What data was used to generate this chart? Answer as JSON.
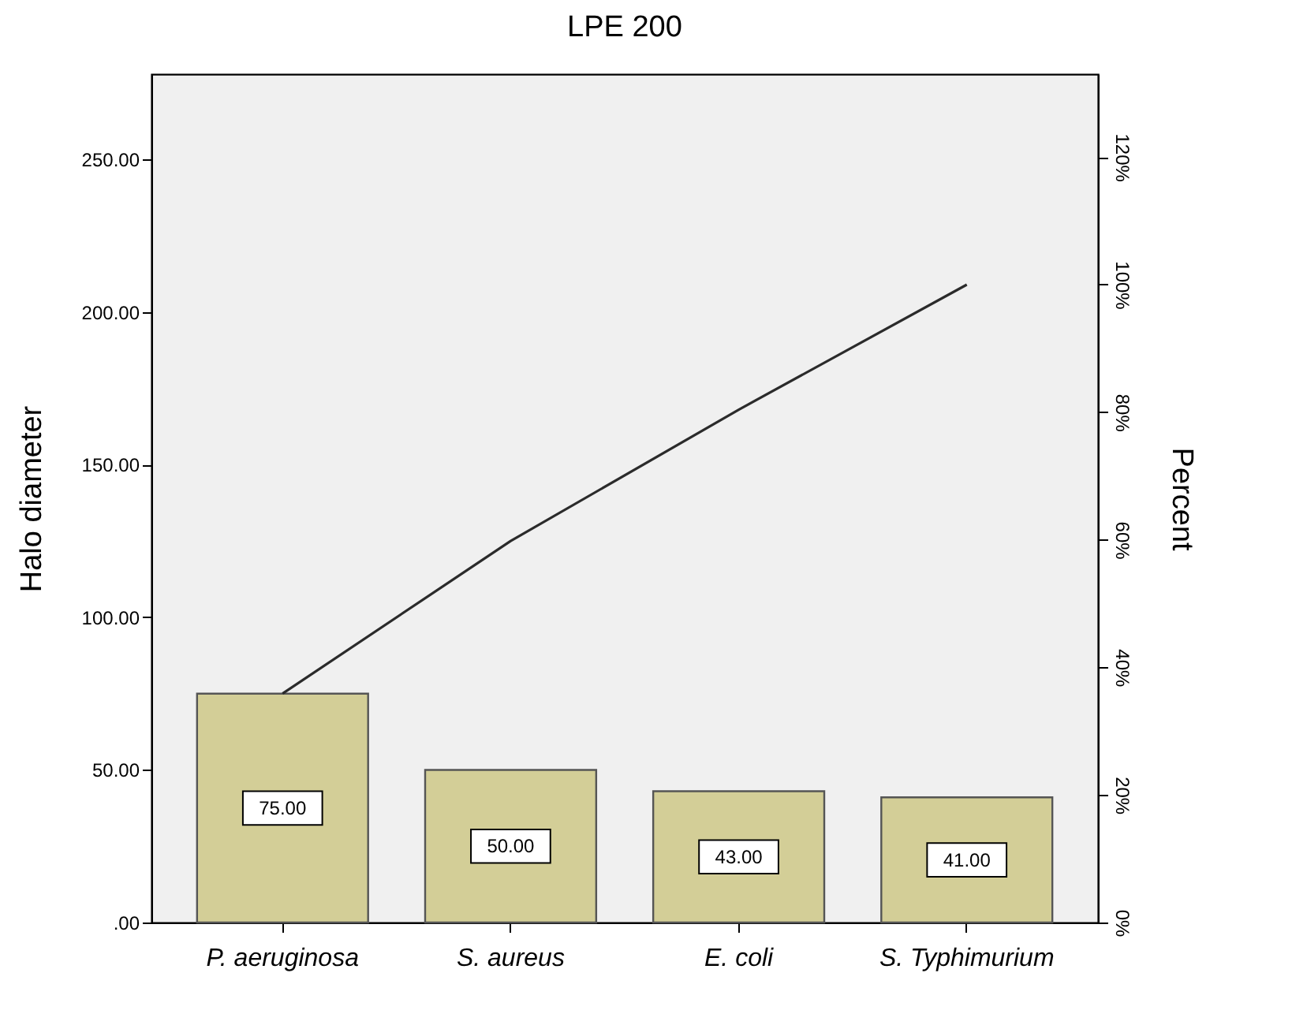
{
  "chart_data": {
    "type": "bar",
    "title": "LPE 200",
    "ylabel": "Halo diameter",
    "y2label": "Percent",
    "categories": [
      "P. aeruginosa",
      "S. aureus",
      "E. coli",
      "S. Typhimurium"
    ],
    "series": [
      {
        "color": "#d3ce97",
        "values": [
          75,
          50,
          43,
          41
        ],
        "value_labels": [
          "75.00",
          "50.00",
          "43.00",
          "41.00"
        ]
      },
      {
        "type": "line",
        "axis": "y2",
        "color": "#2b2b2b",
        "values": [
          35.9,
          59.8,
          80.4,
          100
        ]
      }
    ],
    "ylim": [
      0,
      278
    ],
    "yticks": [
      {
        "value": 0,
        "label": ".00"
      },
      {
        "value": 50,
        "label": "50.00"
      },
      {
        "value": 100,
        "label": "100.00"
      },
      {
        "value": 150,
        "label": "150.00"
      },
      {
        "value": 200,
        "label": "200.00"
      },
      {
        "value": 250,
        "label": "250.00"
      }
    ],
    "y2lim": [
      0,
      133
    ],
    "y2ticks": [
      {
        "value": 0,
        "label": "0%"
      },
      {
        "value": 20,
        "label": "20%"
      },
      {
        "value": 40,
        "label": "40%"
      },
      {
        "value": 60,
        "label": "60%"
      },
      {
        "value": 80,
        "label": "80%"
      },
      {
        "value": 100,
        "label": "100%"
      },
      {
        "value": 120,
        "label": "120%"
      }
    ],
    "grid": false,
    "marker": "none",
    "line_style": "solid"
  }
}
